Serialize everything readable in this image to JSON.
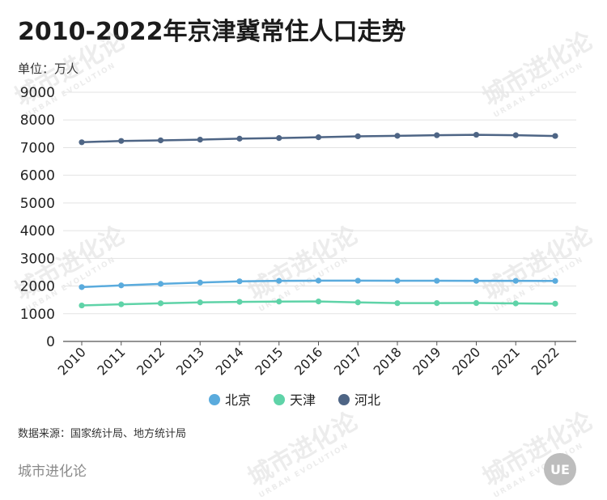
{
  "title": "2010-2022年京津冀常住人口走势",
  "unit_label": "单位：万人",
  "source": "数据来源：国家统计局、地方统计局",
  "brand": "城市进化论",
  "logo_text": "UE",
  "watermark": "城市进化论",
  "watermark_sub": "URBAN EVOLUTION",
  "chart_data": {
    "type": "line",
    "x": [
      "2010",
      "2011",
      "2012",
      "2013",
      "2014",
      "2015",
      "2016",
      "2017",
      "2018",
      "2019",
      "2020",
      "2021",
      "2022"
    ],
    "ylim": [
      0,
      9000
    ],
    "yticks": [
      0,
      1000,
      2000,
      3000,
      4000,
      5000,
      6000,
      7000,
      8000,
      9000
    ],
    "grid": true,
    "legend_position": "bottom",
    "series": [
      {
        "name": "北京",
        "color": "#5aabdd",
        "values": [
          1962,
          2024,
          2078,
          2125,
          2171,
          2188,
          2195,
          2194,
          2192,
          2190,
          2189,
          2189,
          2184
        ]
      },
      {
        "name": "天津",
        "color": "#5fd3a8",
        "values": [
          1299,
          1341,
          1378,
          1410,
          1429,
          1439,
          1443,
          1410,
          1383,
          1385,
          1387,
          1373,
          1363
        ]
      },
      {
        "name": "河北",
        "color": "#4e6585",
        "values": [
          7194,
          7241,
          7262,
          7288,
          7323,
          7345,
          7375,
          7409,
          7426,
          7447,
          7464,
          7448,
          7420
        ]
      }
    ]
  }
}
